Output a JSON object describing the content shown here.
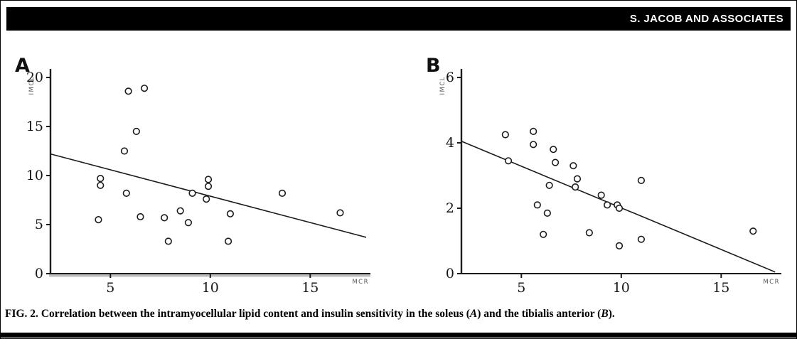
{
  "header": {
    "running_head": "S. JACOB AND ASSOCIATES"
  },
  "caption": {
    "fig_label": "FIG. 2.",
    "seg1": " Correlation between the intramyocellular lipid content and insulin sensitivity in the soleus (",
    "label_a": "A",
    "seg2": ") and the tibialis anterior (",
    "label_b": "B",
    "seg3": ")."
  },
  "chart_data": [
    {
      "type": "scatter",
      "panel_label": "A",
      "muscle": "soleus",
      "xlabel": "MCR",
      "ylabel": "IMCL",
      "xlim": [
        2,
        17.8
      ],
      "ylim": [
        0,
        20
      ],
      "xticks": [
        5,
        10,
        15
      ],
      "yticks": [
        0,
        5,
        10,
        15,
        20
      ],
      "points": [
        [
          4.5,
          9.7
        ],
        [
          4.5,
          9.0
        ],
        [
          4.4,
          5.5
        ],
        [
          5.7,
          12.5
        ],
        [
          5.8,
          8.2
        ],
        [
          5.9,
          18.6
        ],
        [
          6.3,
          14.5
        ],
        [
          6.5,
          5.8
        ],
        [
          6.7,
          18.9
        ],
        [
          7.7,
          5.7
        ],
        [
          7.9,
          3.3
        ],
        [
          8.5,
          6.4
        ],
        [
          8.9,
          5.2
        ],
        [
          9.1,
          8.2
        ],
        [
          9.8,
          7.6
        ],
        [
          9.9,
          9.6
        ],
        [
          9.9,
          8.9
        ],
        [
          10.9,
          3.3
        ],
        [
          11.0,
          6.1
        ],
        [
          13.6,
          8.2
        ],
        [
          16.5,
          6.2
        ]
      ],
      "trendline": {
        "x1": 2,
        "y1": 12.2,
        "x2": 17.8,
        "y2": 3.7
      },
      "grid": false,
      "legend": false
    },
    {
      "type": "scatter",
      "panel_label": "B",
      "muscle": "tibialis anterior",
      "xlabel": "MCR",
      "ylabel": "IMCL",
      "xlim": [
        2,
        17.8
      ],
      "ylim": [
        0,
        6
      ],
      "xticks": [
        5,
        10,
        15
      ],
      "yticks": [
        0,
        2,
        4,
        6
      ],
      "points": [
        [
          4.2,
          4.25
        ],
        [
          4.35,
          3.45
        ],
        [
          5.6,
          4.35
        ],
        [
          5.6,
          3.95
        ],
        [
          5.8,
          2.1
        ],
        [
          6.1,
          1.2
        ],
        [
          6.3,
          1.85
        ],
        [
          6.4,
          2.7
        ],
        [
          6.6,
          3.8
        ],
        [
          6.7,
          3.4
        ],
        [
          7.6,
          3.3
        ],
        [
          7.7,
          2.65
        ],
        [
          7.8,
          2.9
        ],
        [
          8.4,
          1.25
        ],
        [
          9.0,
          2.4
        ],
        [
          9.3,
          2.1
        ],
        [
          9.8,
          2.1
        ],
        [
          9.9,
          2.0
        ],
        [
          9.9,
          0.85
        ],
        [
          11.0,
          2.85
        ],
        [
          11.0,
          1.05
        ],
        [
          16.6,
          1.3
        ]
      ],
      "trendline": {
        "x1": 2,
        "y1": 4.05,
        "x2": 17.7,
        "y2": 0.05
      },
      "grid": false,
      "legend": false
    }
  ]
}
